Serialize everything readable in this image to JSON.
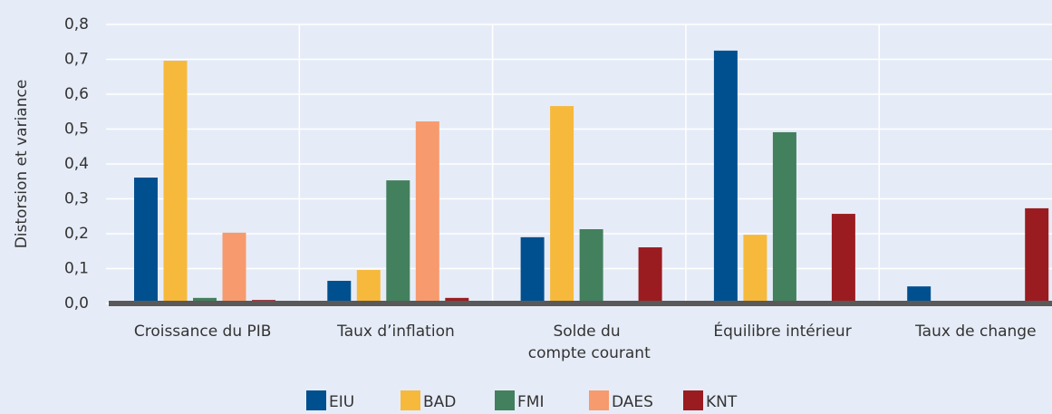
{
  "chart_data": {
    "type": "bar",
    "ylabel": "Distorsion et variance",
    "categories": [
      "Croissance du PIB",
      "Taux d’inflation",
      "Solde du compte courant",
      "Équilibre intérieur",
      "Taux de change"
    ],
    "series": [
      {
        "name": "EIU",
        "color": "#00508f",
        "values": [
          0.361,
          0.065,
          0.19,
          0.725,
          0.049
        ]
      },
      {
        "name": "BAD",
        "color": "#f6b93b",
        "values": [
          0.696,
          0.096,
          0.566,
          0.197,
          null
        ]
      },
      {
        "name": "FMI",
        "color": "#43805d",
        "values": [
          0.016,
          0.353,
          0.213,
          0.491,
          null
        ]
      },
      {
        "name": "DAES",
        "color": "#f79a6d",
        "values": [
          0.203,
          0.522,
          null,
          null,
          null
        ]
      },
      {
        "name": "KNT",
        "color": "#9b1c20",
        "values": [
          0.01,
          0.016,
          0.161,
          0.257,
          0.273
        ]
      }
    ],
    "ylim": [
      0,
      0.8
    ],
    "yticks": [
      {
        "value": 0,
        "label": "0,0"
      },
      {
        "value": 0.1,
        "label": "0,1"
      },
      {
        "value": 0.2,
        "label": "0,2"
      },
      {
        "value": 0.3,
        "label": "0,3"
      },
      {
        "value": 0.4,
        "label": "0,4"
      },
      {
        "value": 0.5,
        "label": "0,5"
      },
      {
        "value": 0.6,
        "label": "0,6"
      },
      {
        "value": 0.7,
        "label": "0,7"
      },
      {
        "value": 0.8,
        "label": "0,8"
      }
    ],
    "grid": true,
    "legend": "bottom"
  }
}
